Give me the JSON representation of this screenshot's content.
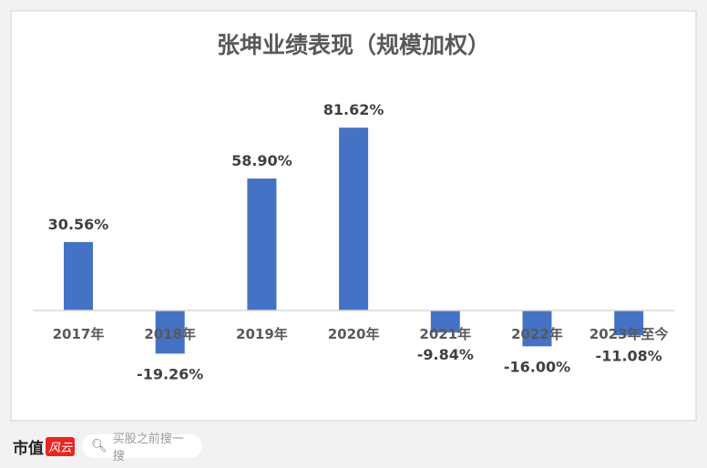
{
  "chart_data": {
    "type": "bar",
    "title": "张坤业绩表现（规模加权）",
    "categories": [
      "2017年",
      "2018年",
      "2019年",
      "2020年",
      "2021年",
      "2022年",
      "2023年至今"
    ],
    "values": [
      30.56,
      -19.26,
      58.9,
      81.62,
      -9.84,
      -16.0,
      -11.08
    ],
    "data_labels": [
      "30.56%",
      "-19.26%",
      "58.90%",
      "81.62%",
      "-9.84%",
      "-16.00%",
      "-11.08%"
    ],
    "xlabel": "",
    "ylabel": "",
    "grid": false,
    "legend": "none",
    "bar_color": "#4472c4"
  },
  "footer": {
    "brand": "市值",
    "brand_mark": "风云",
    "search_placeholder": "买股之前搜一搜",
    "search_icon": "search-icon"
  }
}
